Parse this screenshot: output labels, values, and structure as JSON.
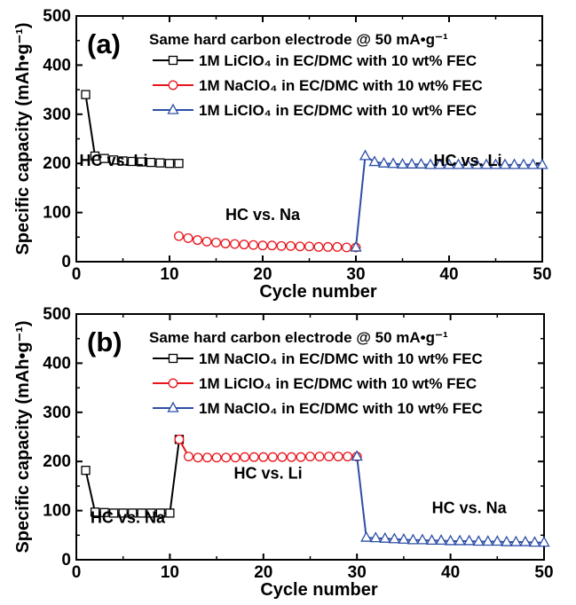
{
  "chart_data": [
    {
      "type": "line",
      "panel_label": "(a)",
      "legend_title": "Same hard carbon electrode @ 50 mA•g⁻¹",
      "xlabel": "Cycle number",
      "ylabel": "Specific capacity (mAh•g⁻¹)",
      "xlim": [
        0,
        50
      ],
      "ylim": [
        0,
        500
      ],
      "xticks": [
        "0",
        "10",
        "20",
        "30",
        "40",
        "50"
      ],
      "yticks": [
        "0",
        "100",
        "200",
        "300",
        "400",
        "500"
      ],
      "grid": false,
      "legend_position": "top-right",
      "series": [
        {
          "name": "1M LiClO₄ in EC/DMC with 10 wt% FEC",
          "color": "#000000",
          "marker": "square",
          "x": [
            1,
            2,
            3,
            4,
            5,
            6,
            7,
            8,
            9,
            10,
            11
          ],
          "y": [
            340,
            215,
            210,
            207,
            205,
            204,
            203,
            202,
            201,
            200,
            200
          ]
        },
        {
          "name": "1M NaClO₄ in EC/DMC with 10 wt% FEC",
          "color": "#e8141b",
          "marker": "circle",
          "x": [
            11,
            12,
            13,
            14,
            15,
            16,
            17,
            18,
            19,
            20,
            21,
            22,
            23,
            24,
            25,
            26,
            27,
            28,
            29,
            30
          ],
          "y": [
            52,
            48,
            44,
            41,
            39,
            37,
            36,
            35,
            34,
            33,
            33,
            32,
            32,
            31,
            31,
            30,
            30,
            30,
            29,
            29
          ]
        },
        {
          "name": "1M LiClO₄ in EC/DMC with 10 wt% FEC",
          "color": "#2c4ea6",
          "marker": "triangle",
          "x": [
            30,
            31,
            32,
            33,
            34,
            35,
            36,
            37,
            38,
            39,
            40,
            41,
            42,
            43,
            44,
            45,
            46,
            47,
            48,
            49,
            50
          ],
          "y": [
            29,
            215,
            203,
            200,
            199,
            198,
            198,
            198,
            197,
            197,
            197,
            197,
            197,
            197,
            197,
            197,
            197,
            197,
            197,
            197,
            197
          ]
        }
      ],
      "annotations": [
        {
          "text": "HC vs. Li",
          "x": 4,
          "y": 195
        },
        {
          "text": "HC vs. Na",
          "x": 20,
          "y": 85
        },
        {
          "text": "HC vs. Li",
          "x": 42,
          "y": 195
        }
      ]
    },
    {
      "type": "line",
      "panel_label": "(b)",
      "legend_title": "Same hard carbon electrode @ 50 mA•g⁻¹",
      "xlabel": "Cycle number",
      "ylabel": "Specific capacity (mAh•g⁻¹)",
      "xlim": [
        0,
        50
      ],
      "ylim": [
        0,
        500
      ],
      "xticks": [
        "0",
        "10",
        "20",
        "30",
        "40",
        "50"
      ],
      "yticks": [
        "0",
        "100",
        "200",
        "300",
        "400",
        "500"
      ],
      "grid": false,
      "legend_position": "top-right",
      "series": [
        {
          "name": "1M NaClO₄ in EC/DMC with 10 wt% FEC",
          "color": "#000000",
          "marker": "square",
          "x": [
            1,
            2,
            3,
            4,
            5,
            6,
            7,
            8,
            9,
            10,
            11
          ],
          "y": [
            182,
            97,
            96,
            95,
            95,
            95,
            95,
            95,
            95,
            95,
            245
          ]
        },
        {
          "name": "1M LiClO₄ in EC/DMC with 10 wt% FEC",
          "color": "#e8141b",
          "marker": "circle",
          "x": [
            11,
            12,
            13,
            14,
            15,
            16,
            17,
            18,
            19,
            20,
            21,
            22,
            23,
            24,
            25,
            26,
            27,
            28,
            29,
            30
          ],
          "y": [
            245,
            210,
            208,
            208,
            208,
            208,
            208,
            209,
            209,
            209,
            209,
            209,
            209,
            209,
            210,
            210,
            210,
            210,
            210,
            210
          ]
        },
        {
          "name": "1M NaClO₄ in EC/DMC with 10 wt% FEC",
          "color": "#2c4ea6",
          "marker": "triangle",
          "x": [
            30,
            31,
            32,
            33,
            34,
            35,
            36,
            37,
            38,
            39,
            40,
            41,
            42,
            43,
            44,
            45,
            46,
            47,
            48,
            49,
            50
          ],
          "y": [
            210,
            45,
            44,
            43,
            42,
            41,
            40,
            40,
            39,
            39,
            38,
            38,
            38,
            37,
            37,
            37,
            36,
            36,
            36,
            35,
            35
          ]
        }
      ],
      "annotations": [
        {
          "text": "HC vs. Na",
          "x": 5.5,
          "y": 75
        },
        {
          "text": "HC vs. Li",
          "x": 20.5,
          "y": 165
        },
        {
          "text": "HC vs. Na",
          "x": 42,
          "y": 95
        }
      ]
    }
  ]
}
